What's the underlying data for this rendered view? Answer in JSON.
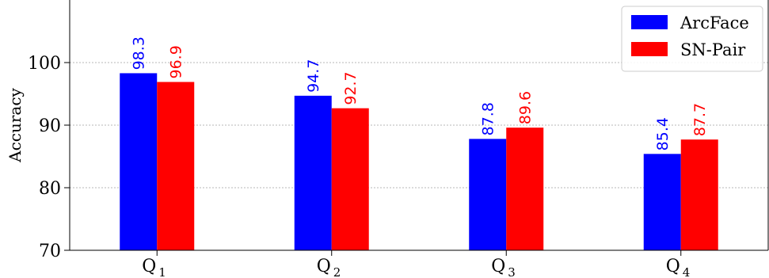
{
  "chart_data": {
    "type": "bar",
    "categories": [
      "Q",
      "Q",
      "Q",
      "Q"
    ],
    "category_subscripts": [
      "1",
      "2",
      "3",
      "4"
    ],
    "series": [
      {
        "name": "ArcFace",
        "values": [
          98.3,
          94.7,
          87.8,
          85.4
        ],
        "color": "#0000ff"
      },
      {
        "name": "SN-Pair",
        "values": [
          96.9,
          92.7,
          89.6,
          87.7
        ],
        "color": "#ff0000"
      }
    ],
    "value_labels": [
      [
        "98.3",
        "94.7",
        "87.8",
        "85.4"
      ],
      [
        "96.9",
        "92.7",
        "89.6",
        "87.7"
      ]
    ],
    "ylabel": "Accuracy",
    "ylim": [
      70,
      110
    ],
    "yticks": [
      70,
      80,
      90,
      100
    ],
    "ytick_labels": [
      "70",
      "80",
      "90",
      "100"
    ],
    "grid": "horizontal dashed",
    "legend_position": "top-right"
  }
}
